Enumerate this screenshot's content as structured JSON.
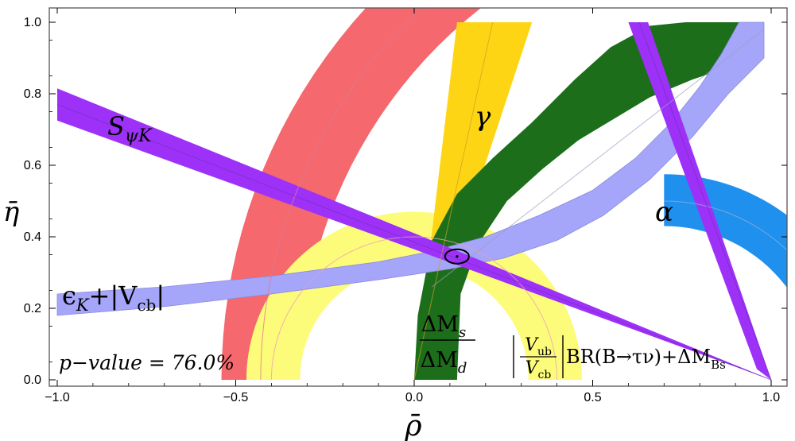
{
  "chart_data": {
    "type": "region",
    "title": "",
    "xlabel": "ρ̄",
    "ylabel": "η̄",
    "xlim": [
      -1.0,
      1.0
    ],
    "ylim": [
      0.0,
      1.0
    ],
    "xticks": [
      -1.0,
      -0.5,
      0.0,
      0.5,
      1.0
    ],
    "xtick_labels": [
      "−1.0",
      "−0.5",
      "0.0",
      "0.5",
      "1.0"
    ],
    "yticks": [
      0.0,
      0.2,
      0.4,
      0.6,
      0.8,
      1.0
    ],
    "ytick_labels": [
      "0.0",
      "0.2",
      "0.4",
      "0.6",
      "0.8",
      "1.0"
    ],
    "grid": false,
    "best_fit": {
      "rho": 0.12,
      "eta": 0.345
    },
    "pvalue_text": "p−value =  76.0%",
    "constraints": [
      {
        "id": "dms_dmd",
        "color": "#f4686e",
        "label_top": "ΔM",
        "label_top_sub": "s",
        "label_bottom": "ΔM",
        "label_bottom_sub": "d",
        "shape": "annulus",
        "center": [
          1.0,
          0.0
        ],
        "r_outer": 1.54,
        "r_inner": 1.32
      },
      {
        "id": "vub_br",
        "color": "#fdfc7a",
        "label_num": "V",
        "label_num_sub": "ub",
        "label_den": "V",
        "label_den_sub": "cb",
        "label_rest": "BR(B→τν)+ΔM",
        "label_rest_sub": "Bs",
        "shape": "annulus",
        "center": [
          0.0,
          0.0
        ],
        "r_outer": 0.47,
        "r_inner": 0.32
      },
      {
        "id": "alpha",
        "color": "#1f90ee",
        "label": "α",
        "shape": "arc_band",
        "center": [
          0.7,
          0.0
        ],
        "r_outer": 0.575,
        "r_inner": 0.43,
        "phi_start_deg": 90,
        "phi_end_deg": 0
      },
      {
        "id": "gamma",
        "color": "#fdd514",
        "label": "γ",
        "shape": "wedge",
        "apex": [
          0.0,
          0.0
        ],
        "edge_low": [
          0.33,
          1.0
        ],
        "edge_high": [
          0.12,
          1.0
        ],
        "y_cut": 0.22
      },
      {
        "id": "ms_region",
        "color": "#1d6e1b",
        "shape": "lens",
        "outer_curve": [
          [
            0.0,
            0.0
          ],
          [
            0.01,
            0.18
          ],
          [
            0.05,
            0.39
          ],
          [
            0.12,
            0.52
          ],
          [
            0.22,
            0.62
          ],
          [
            0.33,
            0.72
          ],
          [
            0.45,
            0.84
          ],
          [
            0.55,
            0.93
          ],
          [
            0.66,
            0.99
          ],
          [
            0.76,
            1.0
          ],
          [
            0.85,
            1.0
          ],
          [
            0.92,
            1.0
          ],
          [
            0.98,
            0.98
          ]
        ],
        "inner_curve": [
          [
            0.98,
            0.9
          ],
          [
            0.9,
            0.88
          ],
          [
            0.78,
            0.84
          ],
          [
            0.66,
            0.79
          ],
          [
            0.56,
            0.73
          ],
          [
            0.46,
            0.67
          ],
          [
            0.36,
            0.59
          ],
          [
            0.26,
            0.5
          ],
          [
            0.18,
            0.38
          ],
          [
            0.13,
            0.24
          ],
          [
            0.12,
            0.0
          ]
        ]
      },
      {
        "id": "eps_k",
        "color": "#a5a5f9",
        "label": "ϵ",
        "label_sub": "K",
        "label_rest": "+|V",
        "label_rest_sub": "cb",
        "label_end": "|",
        "shape": "band",
        "upper": [
          [
            -1.0,
            0.24
          ],
          [
            -0.7,
            0.26
          ],
          [
            -0.4,
            0.29
          ],
          [
            -0.1,
            0.33
          ],
          [
            0.05,
            0.36
          ],
          [
            0.2,
            0.4
          ],
          [
            0.35,
            0.46
          ],
          [
            0.5,
            0.53
          ],
          [
            0.62,
            0.62
          ],
          [
            0.72,
            0.72
          ],
          [
            0.8,
            0.82
          ],
          [
            0.86,
            0.91
          ],
          [
            0.91,
            1.0
          ],
          [
            0.98,
            1.0
          ]
        ],
        "lower": [
          [
            0.98,
            0.9
          ],
          [
            0.88,
            0.8
          ],
          [
            0.78,
            0.68
          ],
          [
            0.66,
            0.56
          ],
          [
            0.53,
            0.46
          ],
          [
            0.4,
            0.39
          ],
          [
            0.25,
            0.34
          ],
          [
            0.1,
            0.31
          ],
          [
            -0.1,
            0.28
          ],
          [
            -0.4,
            0.24
          ],
          [
            -0.7,
            0.205
          ],
          [
            -1.0,
            0.18
          ]
        ]
      },
      {
        "id": "s_psik",
        "color": "#9e31f7",
        "label": "S",
        "label_sub": "ψK",
        "shape": "band",
        "upper": [
          [
            -1.0,
            0.815
          ],
          [
            0.0,
            0.41
          ],
          [
            1.0,
            0.0
          ]
        ],
        "lower": [
          [
            1.0,
            0.0
          ],
          [
            0.0,
            0.365
          ],
          [
            -1.0,
            0.725
          ]
        ]
      },
      {
        "id": "purple_thin",
        "color": "#9e31f7",
        "shape": "band",
        "upper": [
          [
            0.6,
            1.0
          ],
          [
            0.655,
            1.0
          ],
          [
            1.0,
            0.0
          ]
        ],
        "lower": [
          [
            1.0,
            0.0
          ],
          [
            0.96,
            0.03
          ],
          [
            0.6,
            1.0
          ]
        ]
      }
    ]
  }
}
